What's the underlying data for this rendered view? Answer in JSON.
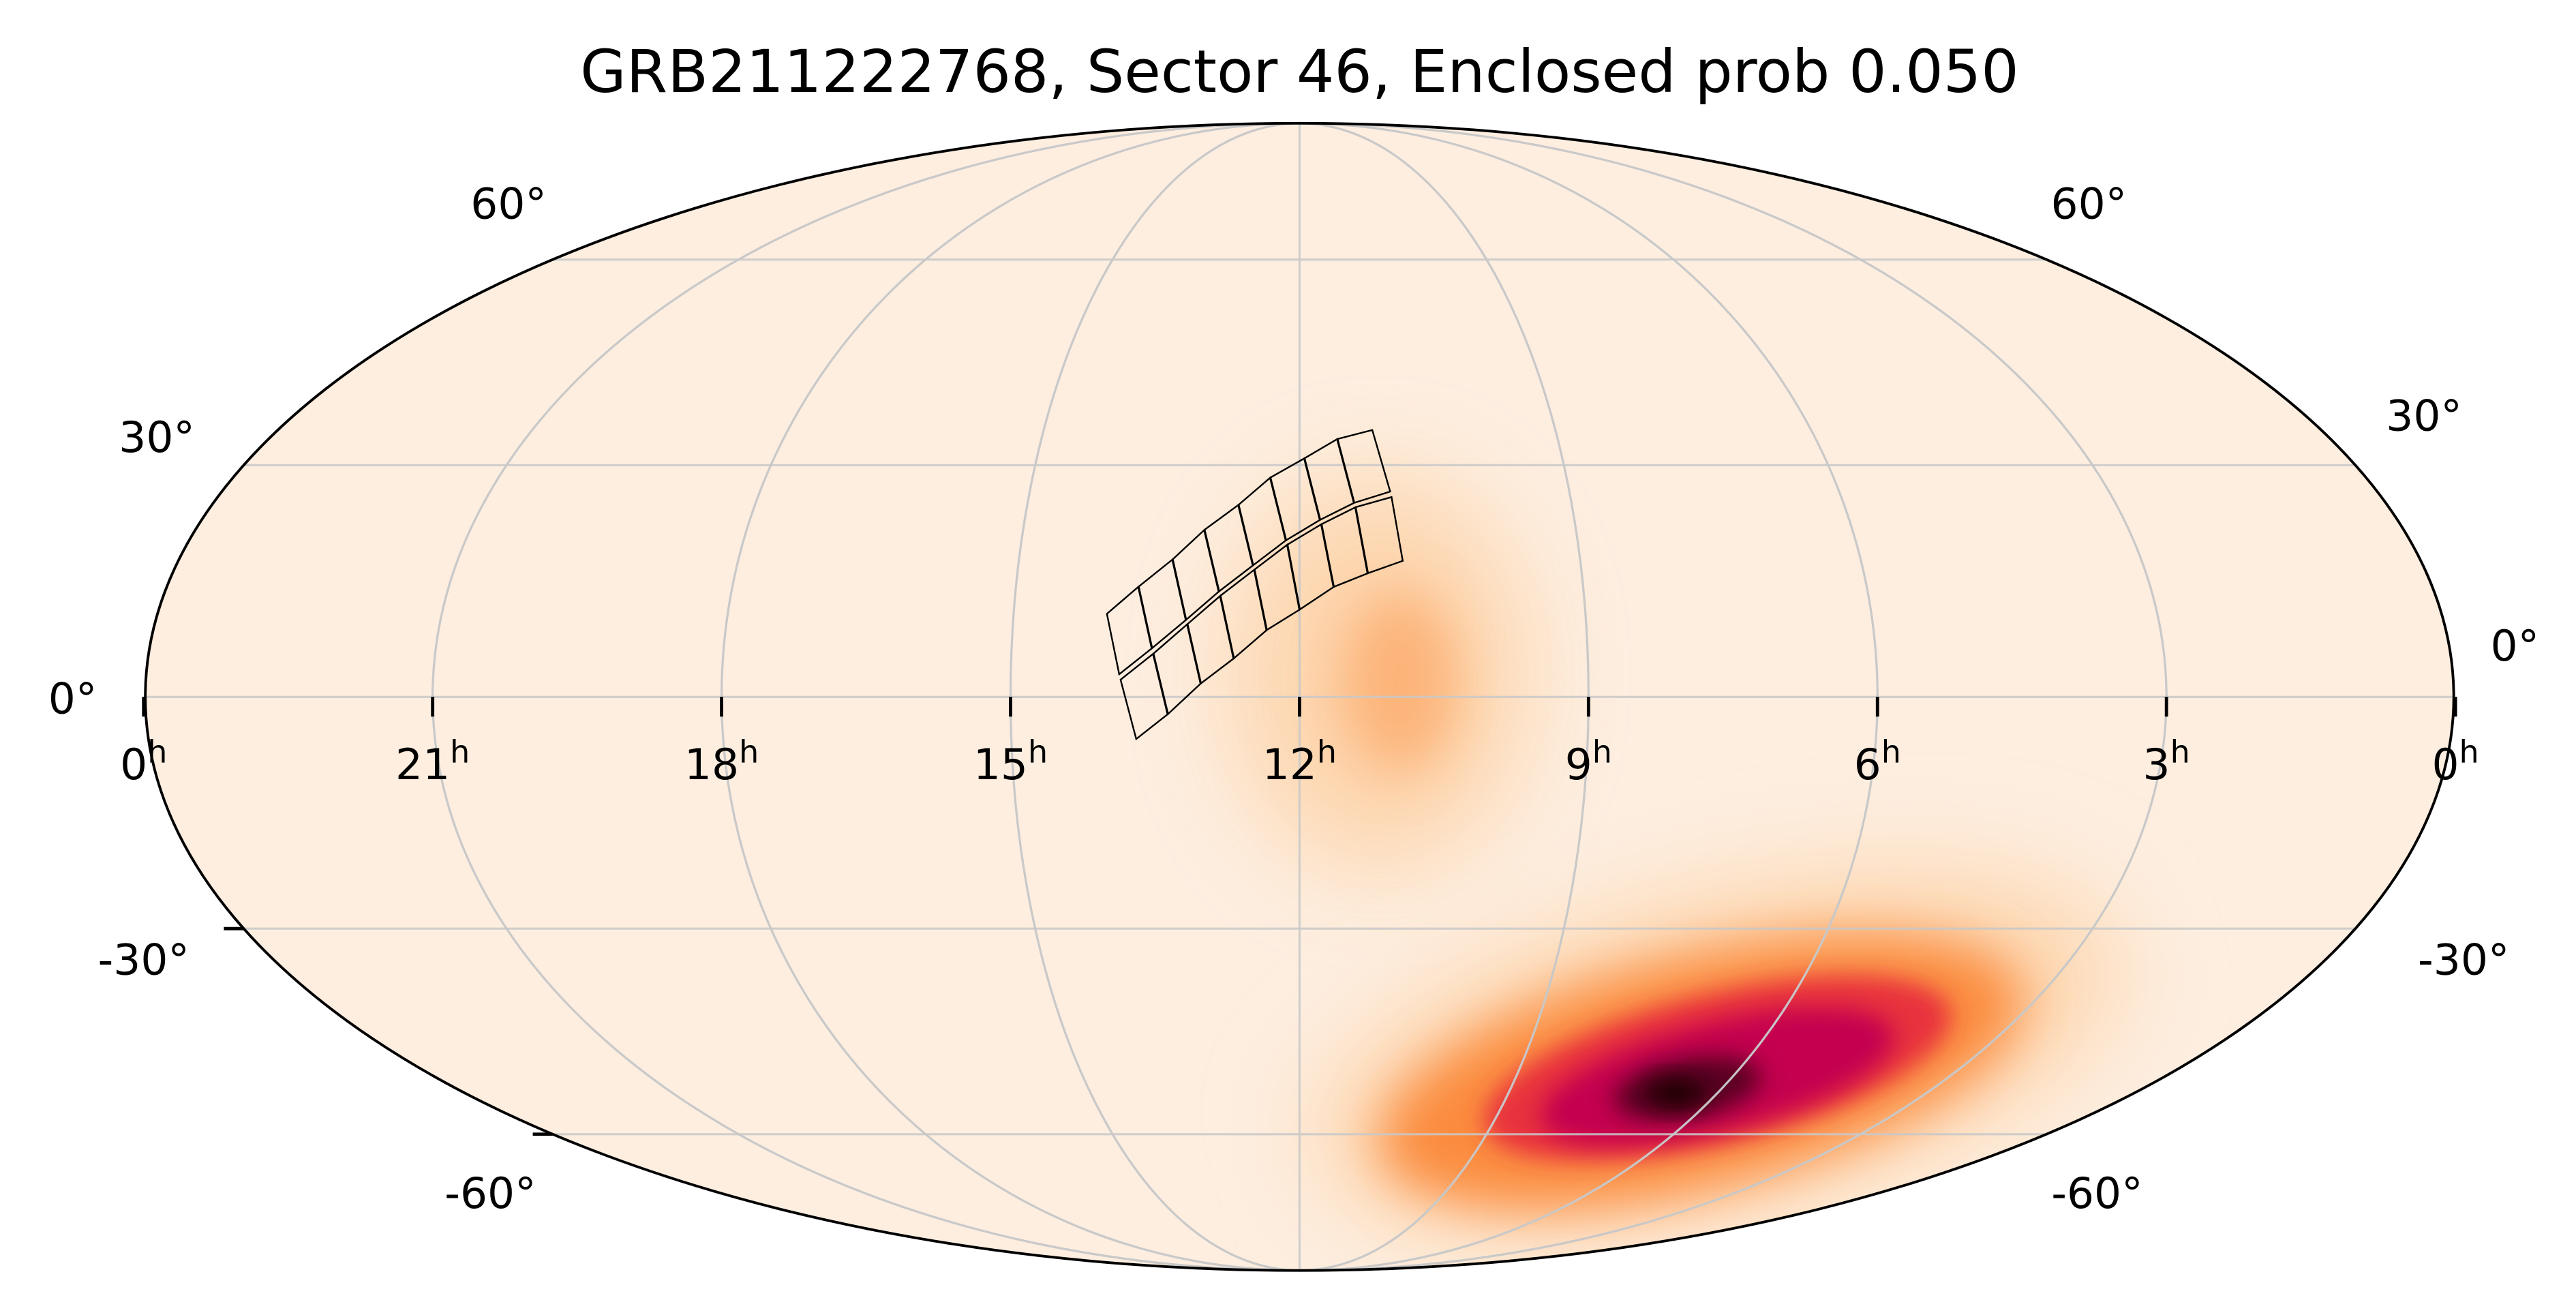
{
  "chart_data": {
    "type": "heatmap",
    "projection": "mollweide",
    "title": "GRB211222768, Sector 46, Enclosed prob 0.050",
    "ra_tick_labels": [
      {
        "hours": "0",
        "unit": "h"
      },
      {
        "hours": "21",
        "unit": "h"
      },
      {
        "hours": "18",
        "unit": "h"
      },
      {
        "hours": "15",
        "unit": "h"
      },
      {
        "hours": "12",
        "unit": "h"
      },
      {
        "hours": "9",
        "unit": "h"
      },
      {
        "hours": "6",
        "unit": "h"
      },
      {
        "hours": "3",
        "unit": "h"
      },
      {
        "hours": "0",
        "unit": "h"
      }
    ],
    "dec_tick_labels": [
      "60°",
      "30°",
      "0°",
      "-30°",
      "-60°"
    ],
    "ra_direction": "increasing to the left",
    "grid": true,
    "grid_spacing": {
      "ra_hours": 3,
      "dec_deg": 30
    },
    "colormap": [
      "#fdeee0",
      "#fdd0a2",
      "#fb8b3c",
      "#e8303c",
      "#c4004f",
      "#5a0020",
      "#1a0000"
    ],
    "probability_peaks": [
      {
        "label": "primary",
        "ra_deg_approx": 99,
        "dec_deg_approx": -53,
        "relative_density": 1.0
      },
      {
        "label": "secondary",
        "ra_deg_approx": 164,
        "dec_deg_approx": 3,
        "relative_density": 0.3
      }
    ],
    "footprint": {
      "sector": 46,
      "enclosed_prob": 0.05,
      "rows": 2,
      "columns": 8
    }
  }
}
